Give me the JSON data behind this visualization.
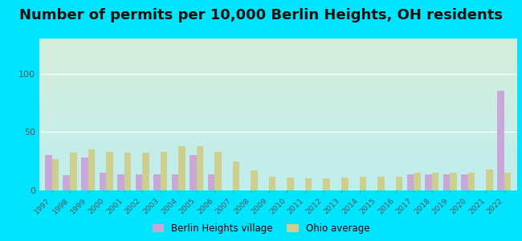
{
  "title": "Number of permits per 10,000 Berlin Heights, OH residents",
  "years": [
    1997,
    1998,
    1999,
    2000,
    2001,
    2002,
    2003,
    2004,
    2005,
    2006,
    2007,
    2008,
    2009,
    2010,
    2011,
    2012,
    2013,
    2014,
    2015,
    2016,
    2017,
    2018,
    2019,
    2020,
    2021,
    2022
  ],
  "berlin_heights": [
    30,
    13,
    28,
    15,
    14,
    14,
    14,
    14,
    30,
    14,
    0,
    0,
    0,
    0,
    0,
    0,
    0,
    0,
    0,
    0,
    14,
    14,
    14,
    14,
    0,
    85
  ],
  "ohio_avg": [
    27,
    32,
    35,
    33,
    32,
    32,
    33,
    38,
    38,
    33,
    25,
    17,
    12,
    11,
    10,
    10,
    11,
    12,
    12,
    12,
    15,
    15,
    15,
    15,
    18,
    15
  ],
  "berlin_color": "#c9a8d9",
  "ohio_color": "#cccf8e",
  "bg_outer": "#00e5ff",
  "bg_plot_top_left": "#d4edda",
  "bg_plot_top_right": "#f0f8ee",
  "bg_plot_bottom": "#c2eeee",
  "ylim": [
    0,
    130
  ],
  "yticks": [
    0,
    50,
    100
  ],
  "title_fontsize": 13,
  "legend_label_berlin": "Berlin Heights village",
  "legend_label_ohio": "Ohio average",
  "bar_width": 0.38
}
